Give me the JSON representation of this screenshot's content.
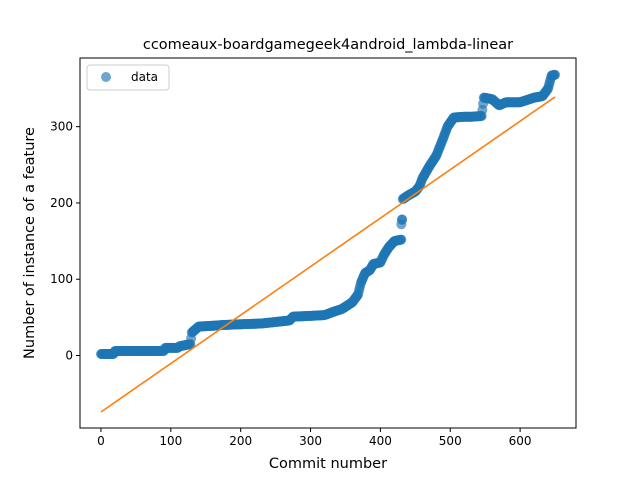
{
  "chart_data": {
    "type": "scatter",
    "title": "ccomeaux-boardgamegeek4android_lambda-linear",
    "xlabel": "Commit number",
    "ylabel": "Number of instance of a feature",
    "xlim": [
      -30,
      680
    ],
    "ylim": [
      -95,
      390
    ],
    "x_ticks": [
      0,
      100,
      200,
      300,
      400,
      500,
      600
    ],
    "y_ticks": [
      0,
      100,
      200,
      300
    ],
    "grid": false,
    "legend": {
      "placement": "top-left",
      "entries": [
        "data"
      ]
    },
    "colors": {
      "data": "#1f77b4",
      "fit": "#ff7f0e"
    },
    "data_profile": [
      [
        0,
        2
      ],
      [
        18,
        2
      ],
      [
        20,
        6
      ],
      [
        40,
        6
      ],
      [
        60,
        6
      ],
      [
        80,
        6
      ],
      [
        90,
        6
      ],
      [
        92,
        10
      ],
      [
        110,
        10
      ],
      [
        112,
        12
      ],
      [
        128,
        15
      ],
      [
        130,
        30
      ],
      [
        135,
        34
      ],
      [
        140,
        38
      ],
      [
        160,
        39
      ],
      [
        175,
        40
      ],
      [
        200,
        41
      ],
      [
        230,
        42
      ],
      [
        240,
        43
      ],
      [
        260,
        45
      ],
      [
        270,
        46
      ],
      [
        275,
        51
      ],
      [
        300,
        52
      ],
      [
        320,
        53
      ],
      [
        335,
        58
      ],
      [
        345,
        61
      ],
      [
        360,
        70
      ],
      [
        368,
        80
      ],
      [
        372,
        95
      ],
      [
        378,
        108
      ],
      [
        385,
        112
      ],
      [
        390,
        120
      ],
      [
        400,
        122
      ],
      [
        405,
        132
      ],
      [
        412,
        142
      ],
      [
        420,
        150
      ],
      [
        430,
        152
      ],
      [
        432,
        205
      ],
      [
        440,
        210
      ],
      [
        450,
        215
      ],
      [
        456,
        222
      ],
      [
        460,
        232
      ],
      [
        470,
        248
      ],
      [
        480,
        262
      ],
      [
        490,
        285
      ],
      [
        496,
        300
      ],
      [
        505,
        312
      ],
      [
        520,
        313
      ],
      [
        530,
        313
      ],
      [
        545,
        314
      ],
      [
        548,
        338
      ],
      [
        560,
        336
      ],
      [
        570,
        328
      ],
      [
        580,
        332
      ],
      [
        600,
        332
      ],
      [
        620,
        338
      ],
      [
        632,
        340
      ],
      [
        640,
        350
      ],
      [
        645,
        367
      ],
      [
        650,
        368
      ]
    ],
    "outliers": [
      [
        430,
        172
      ],
      [
        431,
        178
      ]
    ],
    "series": [
      {
        "name": "data",
        "kind": "scatter"
      },
      {
        "kind": "line",
        "x": [
          0,
          650
        ],
        "y": [
          -74,
          339
        ]
      }
    ]
  }
}
